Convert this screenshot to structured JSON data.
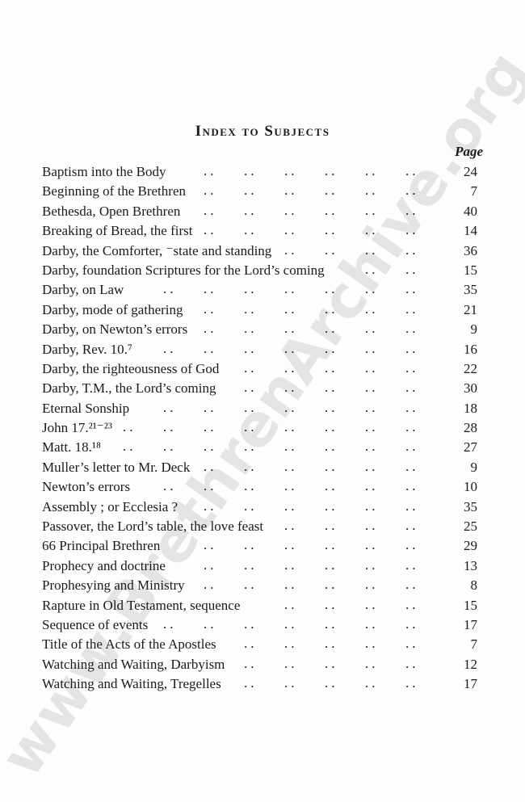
{
  "page": {
    "background": "#fdfdfc",
    "text_color": "#1a1a1a"
  },
  "watermark": {
    "text": "www.BrethrenArchive.org",
    "color": "#e4e4e4"
  },
  "header": {
    "title": "Index to Subjects",
    "page_column_label": "Page"
  },
  "entries": [
    {
      "label": "Baptism into the Body",
      "page": "24"
    },
    {
      "label": "Beginning of the Brethren",
      "page": "7"
    },
    {
      "label": "Bethesda, Open Brethren",
      "page": "40"
    },
    {
      "label": "Breaking of Bread, the first",
      "page": "14"
    },
    {
      "label": "Darby, the Comforter, ⁻state and standing",
      "page": "36"
    },
    {
      "label": "Darby, foundation Scriptures for the Lord’s coming",
      "page": "15"
    },
    {
      "label": "Darby, on Law",
      "page": "35"
    },
    {
      "label": "Darby, mode of gathering",
      "page": "21"
    },
    {
      "label": "Darby, on Newton’s errors",
      "page": "9"
    },
    {
      "label": "Darby, Rev. 10.⁷",
      "page": "16"
    },
    {
      "label": "Darby, the righteousness of God",
      "page": "22"
    },
    {
      "label": "Darby, T.M., the Lord’s coming",
      "page": "30"
    },
    {
      "label": "Eternal Sonship",
      "page": "18"
    },
    {
      "label": "John 17.²¹⁻²³",
      "page": "28"
    },
    {
      "label": "Matt. 18.¹⁸",
      "page": "27"
    },
    {
      "label": "Muller’s letter to Mr. Deck",
      "page": "9"
    },
    {
      "label": "Newton’s errors",
      "page": "10"
    },
    {
      "label": "Assembly ; or Ecclesia ?",
      "page": "35"
    },
    {
      "label": "Passover, the Lord’s table, the love feast",
      "page": "25"
    },
    {
      "label": "66 Principal Brethren",
      "page": "29"
    },
    {
      "label": "Prophecy and doctrine",
      "page": "13"
    },
    {
      "label": "Prophesying and Ministry",
      "page": "8"
    },
    {
      "label": "Rapture in Old Testament, sequence",
      "page": "15"
    },
    {
      "label": "Sequence of events",
      "page": "17"
    },
    {
      "label": "Title of the Acts of the Apostles",
      "page": "7"
    },
    {
      "label": "Watching and Waiting, Darbyism",
      "page": "12"
    },
    {
      "label": "Watching and Waiting, Tregelles",
      "page": "17"
    }
  ]
}
